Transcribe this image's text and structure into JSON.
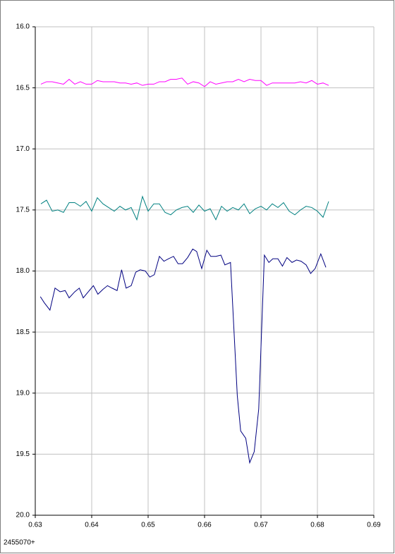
{
  "chart_data": {
    "type": "line",
    "xlabel": "2455070+",
    "xlim": [
      0.63,
      0.69
    ],
    "xticks": [
      0.63,
      0.64,
      0.65,
      0.66,
      0.67,
      0.68,
      0.69
    ],
    "ylim": [
      16,
      20
    ],
    "y_inverted": true,
    "grid": true,
    "yticks": [
      {
        "value": 16,
        "label": "16.0"
      },
      {
        "value": 16.5,
        "label": "16.5"
      },
      {
        "value": 17,
        "label": "17.0"
      },
      {
        "value": 17.5,
        "label": "17.5"
      },
      {
        "value": 18,
        "label": "18.0"
      },
      {
        "value": 18.5,
        "label": "18.5"
      },
      {
        "value": 19,
        "label": "19.0"
      },
      {
        "value": 19.5,
        "label": "19.5"
      },
      {
        "value": 20,
        "label": "20.0"
      }
    ],
    "series": [
      {
        "color": "#ff00ff",
        "x": [
          0.631,
          0.632,
          0.633,
          0.634,
          0.635,
          0.636,
          0.637,
          0.638,
          0.639,
          0.64,
          0.641,
          0.642,
          0.643,
          0.644,
          0.645,
          0.646,
          0.647,
          0.648,
          0.649,
          0.65,
          0.651,
          0.652,
          0.653,
          0.654,
          0.655,
          0.656,
          0.657,
          0.658,
          0.659,
          0.66,
          0.661,
          0.662,
          0.663,
          0.664,
          0.665,
          0.666,
          0.667,
          0.668,
          0.669,
          0.67,
          0.671,
          0.672,
          0.673,
          0.674,
          0.675,
          0.676,
          0.677,
          0.678,
          0.679,
          0.68,
          0.681,
          0.682
        ],
        "values": [
          16.47,
          16.45,
          16.45,
          16.46,
          16.47,
          16.43,
          16.47,
          16.45,
          16.47,
          16.47,
          16.44,
          16.45,
          16.45,
          16.45,
          16.46,
          16.46,
          16.47,
          16.46,
          16.48,
          16.47,
          16.47,
          16.45,
          16.45,
          16.43,
          16.43,
          16.42,
          16.47,
          16.45,
          16.46,
          16.49,
          16.45,
          16.47,
          16.46,
          16.45,
          16.45,
          16.43,
          16.45,
          16.43,
          16.44,
          16.44,
          16.48,
          16.46,
          16.46,
          16.46,
          16.46,
          16.46,
          16.45,
          16.46,
          16.44,
          16.47,
          16.46,
          16.48
        ]
      },
      {
        "color": "#008080",
        "x": [
          0.631,
          0.632,
          0.633,
          0.634,
          0.635,
          0.636,
          0.637,
          0.638,
          0.639,
          0.64,
          0.641,
          0.642,
          0.643,
          0.644,
          0.645,
          0.646,
          0.647,
          0.648,
          0.649,
          0.65,
          0.651,
          0.652,
          0.653,
          0.654,
          0.655,
          0.656,
          0.657,
          0.658,
          0.659,
          0.66,
          0.661,
          0.662,
          0.663,
          0.664,
          0.665,
          0.666,
          0.667,
          0.668,
          0.669,
          0.67,
          0.671,
          0.672,
          0.673,
          0.674,
          0.675,
          0.676,
          0.677,
          0.678,
          0.679,
          0.68,
          0.681,
          0.682
        ],
        "values": [
          17.45,
          17.42,
          17.51,
          17.5,
          17.52,
          17.44,
          17.44,
          17.47,
          17.43,
          17.51,
          17.4,
          17.45,
          17.48,
          17.51,
          17.47,
          17.5,
          17.48,
          17.58,
          17.39,
          17.51,
          17.45,
          17.45,
          17.52,
          17.54,
          17.5,
          17.48,
          17.47,
          17.52,
          17.46,
          17.51,
          17.49,
          17.58,
          17.47,
          17.51,
          17.48,
          17.5,
          17.45,
          17.53,
          17.49,
          17.47,
          17.5,
          17.45,
          17.48,
          17.44,
          17.51,
          17.54,
          17.5,
          17.47,
          17.48,
          17.51,
          17.56,
          17.43
        ]
      },
      {
        "color": "#000080",
        "x": [
          0.6309,
          0.6316,
          0.6326,
          0.6335,
          0.6344,
          0.6353,
          0.636,
          0.637,
          0.6378,
          0.6385,
          0.6394,
          0.6403,
          0.6411,
          0.642,
          0.6428,
          0.6436,
          0.6445,
          0.6453,
          0.6461,
          0.647,
          0.6478,
          0.6486,
          0.6495,
          0.6503,
          0.6511,
          0.652,
          0.6528,
          0.6536,
          0.6545,
          0.6553,
          0.6561,
          0.657,
          0.6579,
          0.6586,
          0.6595,
          0.6604,
          0.6611,
          0.662,
          0.6629,
          0.6636,
          0.6646,
          0.6658,
          0.6664,
          0.6673,
          0.668,
          0.6688,
          0.6696,
          0.6706,
          0.6714,
          0.6721,
          0.673,
          0.6738,
          0.6746,
          0.6755,
          0.6763,
          0.6771,
          0.678,
          0.6788,
          0.6796,
          0.6806,
          0.6815
        ],
        "values": [
          18.21,
          18.26,
          18.32,
          18.14,
          18.17,
          18.16,
          18.22,
          18.17,
          18.14,
          18.22,
          18.17,
          18.12,
          18.19,
          18.15,
          18.12,
          18.14,
          18.16,
          17.99,
          18.14,
          18.12,
          18.01,
          17.99,
          18.0,
          18.05,
          18.03,
          17.88,
          17.92,
          17.9,
          17.88,
          17.94,
          17.94,
          17.89,
          17.82,
          17.84,
          17.98,
          17.83,
          17.88,
          17.88,
          17.87,
          17.95,
          17.93,
          19.02,
          19.31,
          19.37,
          19.57,
          19.48,
          19.13,
          17.87,
          17.93,
          17.9,
          17.9,
          17.96,
          17.89,
          17.93,
          17.91,
          17.92,
          17.95,
          18.02,
          17.98,
          17.86,
          17.97
        ]
      }
    ]
  }
}
